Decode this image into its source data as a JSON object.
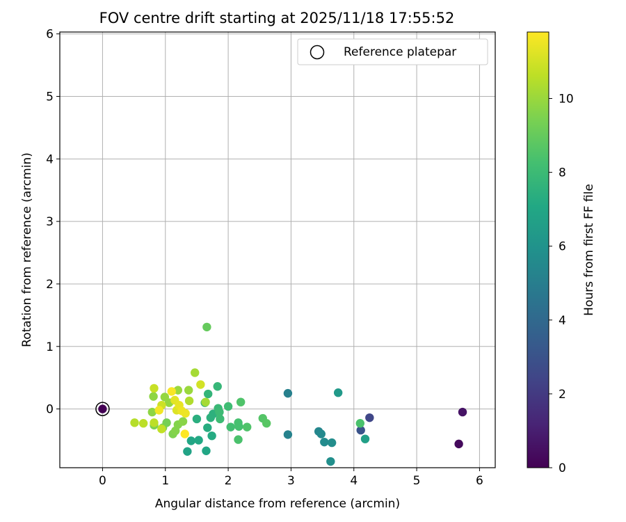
{
  "chart_data": {
    "type": "scatter",
    "title": "FOV centre drift starting at 2025/11/18 17:55:52",
    "xlabel": "Angular distance from reference (arcmin)",
    "ylabel": "Rotation from reference (arcmin)",
    "xlim": [
      -0.68,
      6.25
    ],
    "ylim": [
      -0.94,
      6.03
    ],
    "xticks": [
      "0",
      "1",
      "2",
      "3",
      "4",
      "5",
      "6"
    ],
    "yticks": [
      "0",
      "1",
      "2",
      "3",
      "4",
      "5",
      "6"
    ],
    "grid": true,
    "legend": {
      "label": "Reference platepar",
      "placement": "top-right"
    },
    "reference_point": {
      "x": 0,
      "y": 0
    },
    "colorbar": {
      "label": "Hours from first FF file",
      "range": [
        0,
        11.8
      ],
      "ticks": [
        "0",
        "2",
        "4",
        "6",
        "8",
        "10"
      ],
      "colormap": "viridis"
    },
    "points": [
      {
        "x": 0.0,
        "y": 0.0,
        "c": 0.0
      },
      {
        "x": 5.67,
        "y": -0.56,
        "c": 0.3
      },
      {
        "x": 5.73,
        "y": -0.05,
        "c": 0.6
      },
      {
        "x": 4.25,
        "y": -0.14,
        "c": 2.5
      },
      {
        "x": 4.11,
        "y": -0.34,
        "c": 3.0
      },
      {
        "x": 2.95,
        "y": 0.25,
        "c": 5.1
      },
      {
        "x": 2.95,
        "y": -0.41,
        "c": 5.2
      },
      {
        "x": 3.44,
        "y": -0.36,
        "c": 5.4
      },
      {
        "x": 3.48,
        "y": -0.4,
        "c": 5.5
      },
      {
        "x": 3.53,
        "y": -0.53,
        "c": 5.6
      },
      {
        "x": 3.65,
        "y": -0.54,
        "c": 5.7
      },
      {
        "x": 3.63,
        "y": -0.84,
        "c": 5.8
      },
      {
        "x": 3.75,
        "y": 0.26,
        "c": 6.3
      },
      {
        "x": 4.18,
        "y": -0.48,
        "c": 6.6
      },
      {
        "x": 1.35,
        "y": -0.68,
        "c": 6.8
      },
      {
        "x": 1.65,
        "y": -0.67,
        "c": 7.0
      },
      {
        "x": 1.41,
        "y": -0.51,
        "c": 7.0
      },
      {
        "x": 1.53,
        "y": -0.5,
        "c": 7.1
      },
      {
        "x": 1.74,
        "y": -0.43,
        "c": 7.2
      },
      {
        "x": 1.67,
        "y": -0.3,
        "c": 7.3
      },
      {
        "x": 1.5,
        "y": -0.16,
        "c": 7.4
      },
      {
        "x": 1.72,
        "y": -0.14,
        "c": 7.5
      },
      {
        "x": 1.76,
        "y": -0.08,
        "c": 7.5
      },
      {
        "x": 1.63,
        "y": 0.1,
        "c": 7.6
      },
      {
        "x": 1.68,
        "y": 0.24,
        "c": 7.7
      },
      {
        "x": 1.83,
        "y": 0.36,
        "c": 7.8
      },
      {
        "x": 1.84,
        "y": 0.01,
        "c": 7.9
      },
      {
        "x": 1.87,
        "y": -0.16,
        "c": 8.0
      },
      {
        "x": 1.86,
        "y": -0.05,
        "c": 8.0
      },
      {
        "x": 2.0,
        "y": 0.04,
        "c": 8.1
      },
      {
        "x": 2.04,
        "y": -0.29,
        "c": 8.2
      },
      {
        "x": 2.16,
        "y": -0.22,
        "c": 8.3
      },
      {
        "x": 2.17,
        "y": -0.28,
        "c": 8.3
      },
      {
        "x": 2.16,
        "y": -0.49,
        "c": 8.4
      },
      {
        "x": 2.2,
        "y": 0.11,
        "c": 8.5
      },
      {
        "x": 2.3,
        "y": -0.29,
        "c": 8.5
      },
      {
        "x": 2.55,
        "y": -0.15,
        "c": 8.6
      },
      {
        "x": 2.61,
        "y": -0.23,
        "c": 8.7
      },
      {
        "x": 4.1,
        "y": -0.23,
        "c": 8.4
      },
      {
        "x": 1.66,
        "y": 1.31,
        "c": 9.0
      },
      {
        "x": 1.02,
        "y": -0.22,
        "c": 9.3
      },
      {
        "x": 0.96,
        "y": -0.3,
        "c": 9.4
      },
      {
        "x": 0.82,
        "y": -0.26,
        "c": 9.5
      },
      {
        "x": 1.12,
        "y": -0.4,
        "c": 9.5
      },
      {
        "x": 1.16,
        "y": -0.35,
        "c": 9.6
      },
      {
        "x": 1.2,
        "y": -0.25,
        "c": 9.6
      },
      {
        "x": 1.28,
        "y": -0.2,
        "c": 9.7
      },
      {
        "x": 0.79,
        "y": -0.05,
        "c": 9.8
      },
      {
        "x": 0.81,
        "y": 0.2,
        "c": 9.8
      },
      {
        "x": 0.99,
        "y": 0.19,
        "c": 9.9
      },
      {
        "x": 1.06,
        "y": 0.1,
        "c": 9.9
      },
      {
        "x": 1.2,
        "y": 0.3,
        "c": 10.0
      },
      {
        "x": 1.37,
        "y": 0.3,
        "c": 10.0
      },
      {
        "x": 1.47,
        "y": 0.58,
        "c": 10.2
      },
      {
        "x": 1.64,
        "y": 0.11,
        "c": 10.2
      },
      {
        "x": 1.38,
        "y": 0.13,
        "c": 10.4
      },
      {
        "x": 0.51,
        "y": -0.22,
        "c": 10.5
      },
      {
        "x": 0.65,
        "y": -0.23,
        "c": 10.6
      },
      {
        "x": 0.82,
        "y": -0.22,
        "c": 10.6
      },
      {
        "x": 0.94,
        "y": -0.32,
        "c": 10.7
      },
      {
        "x": 0.82,
        "y": 0.33,
        "c": 10.8
      },
      {
        "x": 0.94,
        "y": 0.06,
        "c": 10.9
      },
      {
        "x": 1.56,
        "y": 0.39,
        "c": 11.0
      },
      {
        "x": 1.18,
        "y": -0.02,
        "c": 11.2
      },
      {
        "x": 1.15,
        "y": 0.14,
        "c": 11.3
      },
      {
        "x": 1.22,
        "y": 0.06,
        "c": 11.4
      },
      {
        "x": 1.26,
        "y": -0.03,
        "c": 11.5
      },
      {
        "x": 1.32,
        "y": -0.07,
        "c": 11.5
      },
      {
        "x": 0.9,
        "y": -0.02,
        "c": 11.6
      },
      {
        "x": 1.1,
        "y": 0.28,
        "c": 11.7
      },
      {
        "x": 1.31,
        "y": -0.4,
        "c": 11.8
      }
    ]
  }
}
